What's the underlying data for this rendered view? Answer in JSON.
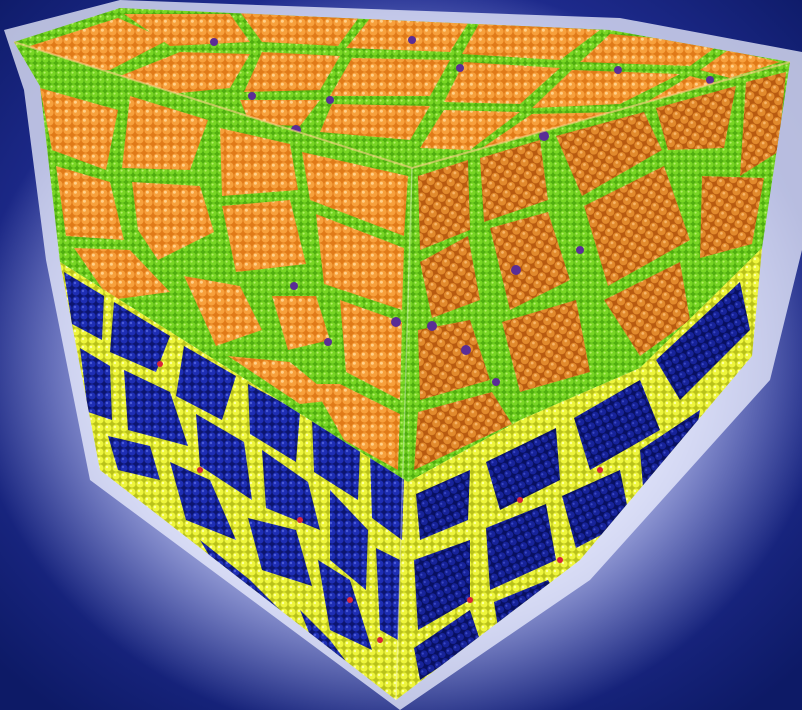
{
  "colors": {
    "background": "#0d1a66",
    "glow": "#c9d2ff",
    "upper_grain": "#f28f24",
    "upper_grain_shade": "#d66e12",
    "upper_boundary": "#6ccf1c",
    "upper_defect": "#5a2d96",
    "lower_grain": "#1826a8",
    "lower_grain_shade": "#0d1780",
    "lower_boundary": "#e7f23a",
    "lower_defect": "#d8243a"
  },
  "scene": {
    "subject": "nanocrystalline-cube-render",
    "faces": [
      "top-face",
      "front-left-face",
      "front-right-face"
    ],
    "layers": [
      "upper-layer",
      "lower-layer"
    ]
  }
}
